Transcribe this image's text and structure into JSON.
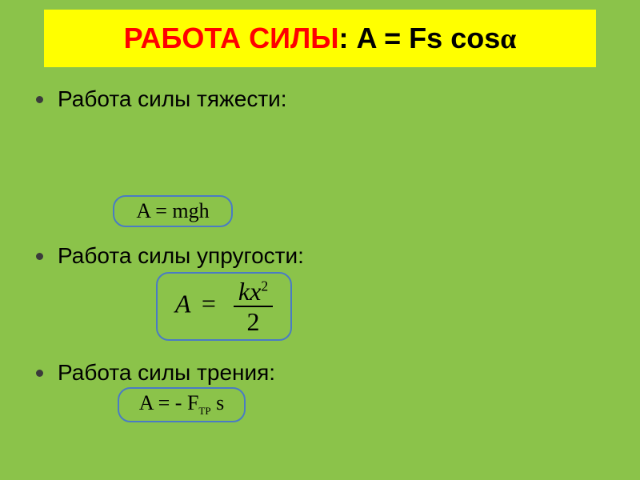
{
  "colors": {
    "slide_bg": "#8bc34a",
    "header_bg": "#ffff00",
    "header_red": "#ff0000",
    "header_black": "#000000",
    "bullet": "#3b3b3b",
    "box_border": "#4a7bc4",
    "text": "#000000"
  },
  "typography": {
    "header_fontsize": 36,
    "bullet_fontsize": 28,
    "formula_fontsize": 26,
    "formula2_fontsize": 32
  },
  "header": {
    "part1": "РАБОТА   СИЛЫ",
    "part2": ": A = Fs cos",
    "part3": "α"
  },
  "items": [
    {
      "label": "Работа силы тяжести:"
    },
    {
      "label": "Работа силы упругости:"
    },
    {
      "label": "Работа силы трения:"
    }
  ],
  "formulas": {
    "f1": "A = mgh",
    "f2_left": "A",
    "f2_eq": "=",
    "f2_num_k": "kx",
    "f2_num_exp": "2",
    "f2_den": "2",
    "f3_pre": "A = - F",
    "f3_sub": "ТР",
    "f3_post": " s"
  }
}
